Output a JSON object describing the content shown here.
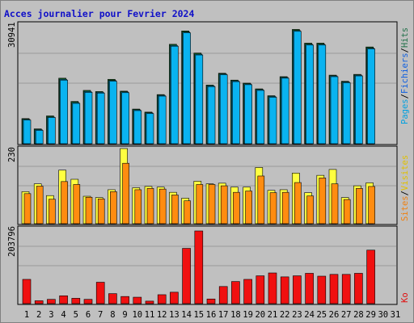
{
  "title": "Acces journalier pour Fevrier 2024",
  "colors": {
    "pages": "#0ab3f0",
    "pages_shade": "#1a5a7a",
    "files": "#0ab3f0",
    "hits": "#106020",
    "visits": "#ffff40",
    "sites": "#ff8c10",
    "ko": "#f01010",
    "weekend_label": "#20904a",
    "legend_pages": "#00a0e0",
    "legend_files": "#1060e0",
    "legend_hits": "#207048",
    "legend_visits": "#e0c000",
    "legend_sites": "#f08010",
    "legend_ko": "#e01010",
    "separator": "#000000"
  },
  "chart_data": [
    {
      "type": "bar",
      "name": "hits-pages-files",
      "categories": [
        "1",
        "2",
        "3",
        "4",
        "5",
        "6",
        "7",
        "8",
        "9",
        "10",
        "11",
        "12",
        "13",
        "14",
        "15",
        "16",
        "17",
        "18",
        "19",
        "20",
        "21",
        "22",
        "23",
        "24",
        "25",
        "26",
        "27",
        "28",
        "29",
        "30",
        "31"
      ],
      "max_label": "30941",
      "ylim": [
        0,
        30941
      ],
      "series": [
        {
          "name": "Hits",
          "values": [
            6600,
            3900,
            7300,
            17200,
            11100,
            14000,
            13700,
            16900,
            13800,
            9100,
            8300,
            12900,
            26100,
            29600,
            23800,
            15400,
            18500,
            16700,
            15900,
            14400,
            12600,
            17600,
            30000,
            26400,
            26400,
            18000,
            16400,
            18200,
            25400,
            0,
            0
          ]
        },
        {
          "name": "Fichiers",
          "values": [
            6400,
            3700,
            7000,
            16900,
            10800,
            13700,
            13500,
            16600,
            13600,
            8900,
            8100,
            12700,
            25800,
            29300,
            23500,
            15200,
            18300,
            16500,
            15700,
            14200,
            12400,
            17400,
            29700,
            26100,
            26100,
            17800,
            16200,
            18000,
            25100,
            0,
            0
          ]
        },
        {
          "name": "Pages",
          "values": [
            6200,
            3500,
            6900,
            16700,
            10600,
            13500,
            13300,
            16400,
            13400,
            8700,
            7900,
            12500,
            25600,
            29100,
            23300,
            15000,
            18100,
            16300,
            15500,
            14000,
            12200,
            17200,
            29500,
            25900,
            25900,
            17600,
            16000,
            17800,
            24900,
            0,
            0
          ]
        }
      ],
      "legend": [
        "Pages",
        "/",
        "Fichiers",
        "/",
        "Hits"
      ]
    },
    {
      "type": "bar",
      "name": "visits-sites",
      "categories": [
        "1",
        "2",
        "3",
        "4",
        "5",
        "6",
        "7",
        "8",
        "9",
        "10",
        "11",
        "12",
        "13",
        "14",
        "15",
        "16",
        "17",
        "18",
        "19",
        "20",
        "21",
        "22",
        "23",
        "24",
        "25",
        "26",
        "27",
        "28",
        "29",
        "30",
        "31"
      ],
      "max_label": "230",
      "ylim": [
        0,
        230
      ],
      "series": [
        {
          "name": "Visites",
          "values": [
            98,
            122,
            86,
            164,
            136,
            84,
            80,
            104,
            230,
            110,
            114,
            112,
            96,
            78,
            130,
            122,
            124,
            112,
            112,
            172,
            102,
            104,
            155,
            95,
            148,
            166,
            80,
            116,
            125,
            0,
            0
          ]
        },
        {
          "name": "Sites",
          "values": [
            92,
            115,
            75,
            129,
            120,
            81,
            76,
            98,
            185,
            104,
            108,
            106,
            88,
            70,
            120,
            120,
            116,
            96,
            100,
            146,
            95,
            96,
            126,
            85,
            140,
            122,
            74,
            108,
            114,
            0,
            0
          ]
        }
      ],
      "legend": [
        "Sites",
        "/",
        "Visites"
      ]
    },
    {
      "type": "bar",
      "name": "ko",
      "categories": [
        "1",
        "2",
        "3",
        "4",
        "5",
        "6",
        "7",
        "8",
        "9",
        "10",
        "11",
        "12",
        "13",
        "14",
        "15",
        "16",
        "17",
        "18",
        "19",
        "20",
        "21",
        "22",
        "23",
        "24",
        "25",
        "26",
        "27",
        "28",
        "29",
        "30",
        "31"
      ],
      "max_label": "203796",
      "ylim": [
        0,
        203796
      ],
      "series": [
        {
          "name": "Ko",
          "values": [
            68000,
            8000,
            12000,
            22000,
            15000,
            12000,
            60000,
            28000,
            20000,
            18000,
            7000,
            25000,
            32000,
            155000,
            203796,
            13000,
            48000,
            62000,
            68000,
            78000,
            86000,
            75000,
            78000,
            85000,
            77000,
            82000,
            82000,
            85000,
            150000,
            0,
            0
          ]
        }
      ],
      "legend": [
        "Ko"
      ]
    }
  ],
  "x_axis": {
    "labels": [
      "1",
      "2",
      "3",
      "4",
      "5",
      "6",
      "7",
      "8",
      "9",
      "10",
      "11",
      "12",
      "13",
      "14",
      "15",
      "16",
      "17",
      "18",
      "19",
      "20",
      "21",
      "22",
      "23",
      "24",
      "25",
      "26",
      "27",
      "28",
      "29",
      "30",
      "31"
    ],
    "weekend_days": [
      3,
      4,
      10,
      11,
      17,
      18,
      24,
      25,
      31
    ]
  }
}
